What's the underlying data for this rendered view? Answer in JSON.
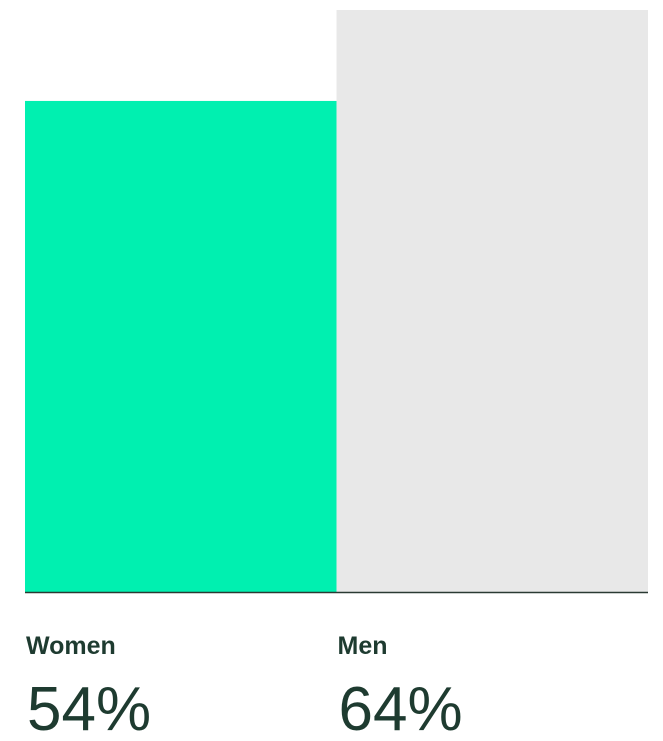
{
  "chart_data": {
    "type": "bar",
    "categories": [
      "Women",
      "Men"
    ],
    "values": [
      54,
      64
    ],
    "value_labels": [
      "54%",
      "64%"
    ],
    "colors": [
      "#00f0b0",
      "#e8e8e8"
    ]
  }
}
